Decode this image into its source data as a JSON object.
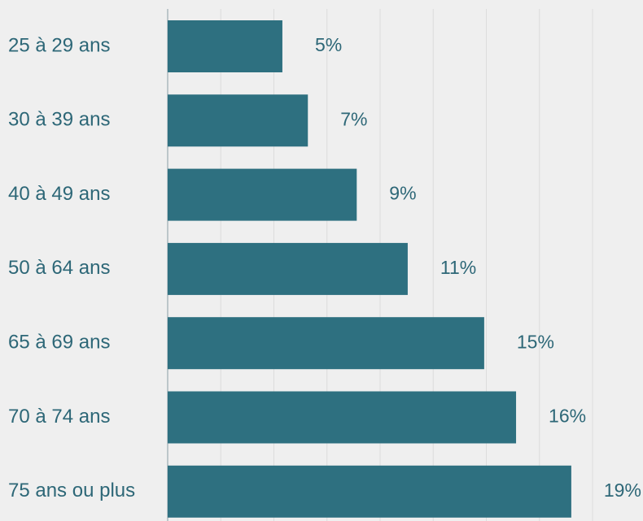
{
  "chart_data": {
    "type": "hbar",
    "categories": [
      "25 à 29 ans",
      "30 à 39 ans",
      "40 à 49 ans",
      "50 à 64 ans",
      "65 à 69 ans",
      "70 à 74 ans",
      "75 ans ou plus"
    ],
    "values": [
      5.4,
      6.6,
      8.9,
      11.3,
      14.9,
      16.4,
      19.0
    ],
    "value_labels": [
      "5%",
      "7%",
      "9%",
      "11%",
      "15%",
      "16%",
      "19%"
    ],
    "color": "#2e7080",
    "xlim": [
      0,
      20
    ],
    "xticks": [
      0,
      2.5,
      5,
      7.5,
      10,
      12.5,
      15,
      17.5,
      20
    ],
    "grid": true
  }
}
